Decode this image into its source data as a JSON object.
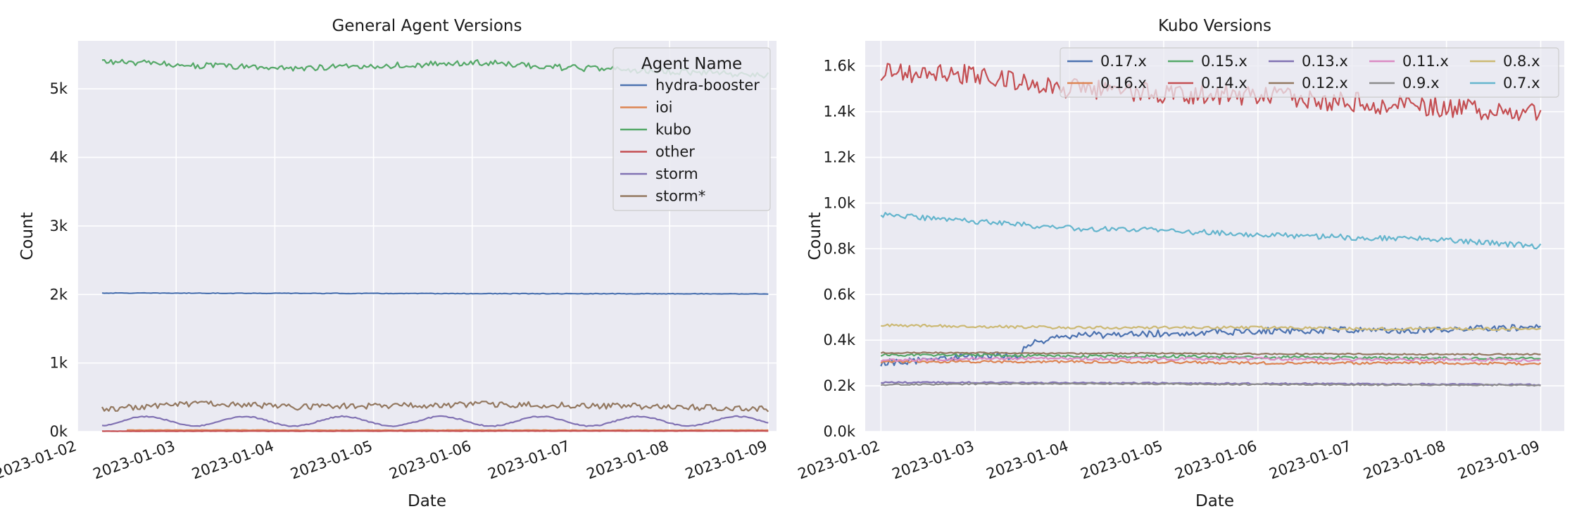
{
  "chart_data": [
    {
      "type": "line",
      "title": "General Agent Versions",
      "xlabel": "Date",
      "ylabel": "Count",
      "x_ticks": [
        "2023-01-02",
        "2023-01-03",
        "2023-01-04",
        "2023-01-05",
        "2023-01-06",
        "2023-01-07",
        "2023-01-08",
        "2023-01-09"
      ],
      "xlim": [
        "2023-01-02 00:00",
        "2023-01-09 02:00"
      ],
      "y_ticks": [
        "0k",
        "1k",
        "2k",
        "3k",
        "4k",
        "5k"
      ],
      "y_tick_values": [
        0,
        1000,
        2000,
        3000,
        4000,
        5000
      ],
      "ylim": [
        0,
        5700
      ],
      "grid": true,
      "legend_title": "Agent Name",
      "legend_position": "top-right",
      "x_range": [
        "2023-01-02 06:00",
        "2023-01-09 00:00"
      ],
      "series": [
        {
          "name": "hydra-booster",
          "color": "#4c72b0",
          "values": [
            2020,
            2018,
            2016,
            2014,
            2012,
            2010,
            2010,
            2008
          ],
          "noise": 4
        },
        {
          "name": "ioi",
          "color": "#dd8452",
          "start": "2023-01-02 12:00",
          "values": [
            20,
            22,
            18,
            20,
            21,
            19,
            20,
            20
          ],
          "noise": 3
        },
        {
          "name": "kubo",
          "color": "#55a868",
          "values": [
            5400,
            5340,
            5300,
            5340,
            5380,
            5300,
            5250,
            5200
          ],
          "noise": 45
        },
        {
          "name": "other",
          "color": "#c44e52",
          "values": [
            5,
            6,
            6,
            7,
            7,
            8,
            8,
            8
          ],
          "noise": 2
        },
        {
          "name": "storm",
          "color": "#8172b3",
          "values": [
            100,
            240,
            90,
            200,
            120,
            210,
            100,
            80
          ],
          "periodic": {
            "base": 150,
            "amp": 70
          },
          "noise": 8
        },
        {
          "name": "storm*",
          "color": "#937860",
          "values": [
            330,
            410,
            360,
            380,
            400,
            380,
            360,
            330
          ],
          "noise": 45
        }
      ]
    },
    {
      "type": "line",
      "title": "Kubo Versions",
      "xlabel": "Date",
      "ylabel": "Count",
      "x_ticks": [
        "2023-01-02",
        "2023-01-03",
        "2023-01-04",
        "2023-01-05",
        "2023-01-06",
        "2023-01-07",
        "2023-01-08",
        "2023-01-09"
      ],
      "xlim": [
        "2023-01-01 20:00",
        "2023-01-09 06:00"
      ],
      "y_ticks": [
        "0.0k",
        "0.2k",
        "0.4k",
        "0.6k",
        "0.8k",
        "1.0k",
        "1.2k",
        "1.4k",
        "1.6k"
      ],
      "y_tick_values": [
        0,
        200,
        400,
        600,
        800,
        1000,
        1200,
        1400,
        1600
      ],
      "ylim": [
        0,
        1710
      ],
      "grid": true,
      "legend_position": "top-right",
      "legend_columns": 5,
      "x_range": [
        "2023-01-02 00:00",
        "2023-01-09 00:00"
      ],
      "series": [
        {
          "name": "0.17.x",
          "color": "#4c72b0",
          "values": [
            300,
            330,
            420,
            430,
            440,
            445,
            445,
            460
          ],
          "step": {
            "at": "2023-01-03 12:00",
            "from": 330,
            "to": 400
          },
          "noise": 15
        },
        {
          "name": "0.16.x",
          "color": "#dd8452",
          "values": [
            305,
            305,
            305,
            305,
            300,
            300,
            300,
            295
          ],
          "noise": 6
        },
        {
          "name": "0.15.x",
          "color": "#55a868",
          "values": [
            335,
            335,
            330,
            330,
            325,
            325,
            320,
            320
          ],
          "noise": 6
        },
        {
          "name": "0.14.x",
          "color": "#c44e52",
          "values": [
            1570,
            1560,
            1500,
            1480,
            1470,
            1440,
            1420,
            1390
          ],
          "noise": 45
        },
        {
          "name": "0.13.x",
          "color": "#8172b3",
          "values": [
            215,
            215,
            213,
            212,
            210,
            209,
            207,
            205
          ],
          "noise": 3
        },
        {
          "name": "0.12.x",
          "color": "#937860",
          "values": [
            345,
            345,
            342,
            342,
            340,
            340,
            338,
            338
          ],
          "noise": 3
        },
        {
          "name": "0.11.x",
          "color": "#da8bc3",
          "values": [
            310,
            320,
            320,
            318,
            318,
            315,
            315,
            312
          ],
          "noise": 6
        },
        {
          "name": "0.9.x",
          "color": "#8c8c8c",
          "values": [
            205,
            208,
            210,
            208,
            206,
            205,
            204,
            203
          ],
          "noise": 3
        },
        {
          "name": "0.8.x",
          "color": "#ccb974",
          "values": [
            465,
            460,
            455,
            455,
            455,
            450,
            450,
            450
          ],
          "noise": 6
        },
        {
          "name": "0.7.x",
          "color": "#64b5cd",
          "values": [
            950,
            920,
            890,
            880,
            860,
            850,
            840,
            810
          ],
          "noise": 12
        }
      ]
    }
  ]
}
